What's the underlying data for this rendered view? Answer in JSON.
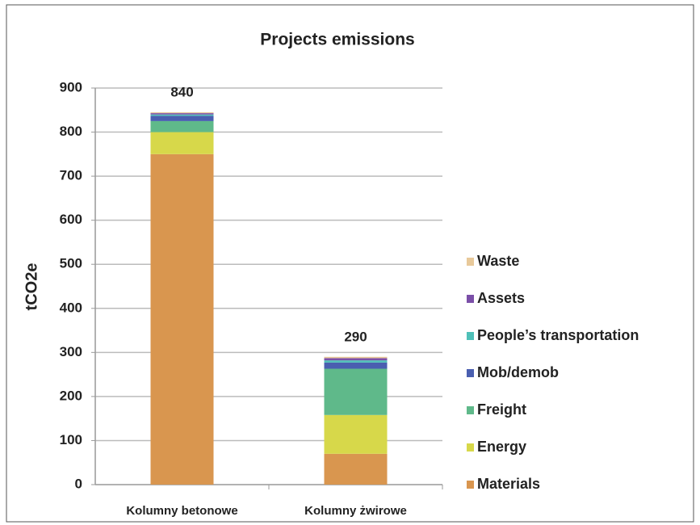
{
  "chart_data": {
    "type": "stacked_bar",
    "title": "Projects emissions",
    "y_label": "tCO2e",
    "categories": [
      "Kolumny betonowe",
      "Kolumny żwirowe"
    ],
    "totals": [
      840,
      290
    ],
    "series": [
      {
        "name": "Materials",
        "color": "#d9964f",
        "values": [
          750,
          70
        ]
      },
      {
        "name": "Energy",
        "color": "#d7d84a",
        "values": [
          50,
          88
        ]
      },
      {
        "name": "Freight",
        "color": "#5fb98a",
        "values": [
          25,
          105
        ]
      },
      {
        "name": "Mob/demob",
        "color": "#4a5fb0",
        "values": [
          12,
          14
        ]
      },
      {
        "name": "People’s transportation",
        "color": "#4fc0b8",
        "values": [
          3,
          5
        ]
      },
      {
        "name": "Assets",
        "color": "#7b4fa8",
        "values": [
          3,
          5
        ]
      },
      {
        "name": "Waste",
        "color": "#e8c99a",
        "values": [
          2,
          3
        ]
      }
    ],
    "ylim": [
      0,
      900
    ],
    "yticks": [
      0,
      100,
      200,
      300,
      400,
      500,
      600,
      700,
      800,
      900
    ],
    "grid": true
  }
}
